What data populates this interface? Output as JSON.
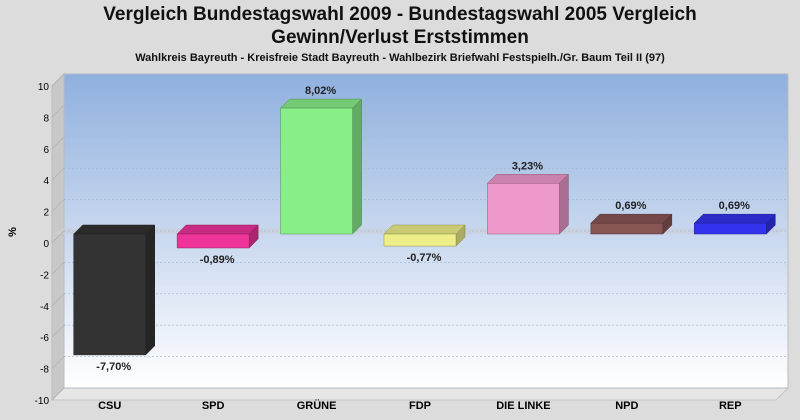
{
  "title_line1": "Vergleich Bundestagswahl 2009 - Bundestagswahl 2005 Vergleich",
  "title_line2": "Gewinn/Verlust Erststimmen",
  "subtitle": "Wahlkreis Bayreuth - Kreisfreie Stadt Bayreuth - Wahlbezirk Briefwahl Festspielh./Gr. Baum Teil II (97)",
  "chart_data": {
    "type": "bar",
    "ylabel": "%",
    "ylim": [
      -10,
      10
    ],
    "yticks": [
      "10",
      "8",
      "6",
      "4",
      "2",
      "0",
      "-2",
      "-4",
      "-6",
      "-8",
      "-10"
    ],
    "grid": true,
    "categories": [
      "CSU",
      "SPD",
      "GRÜNE",
      "FDP",
      "DIE LINKE",
      "NPD",
      "REP"
    ],
    "values": [
      -7.7,
      -0.89,
      8.02,
      -0.77,
      3.23,
      0.69,
      0.69
    ],
    "labels": [
      "-7,70%",
      "-0,89%",
      "8,02%",
      "-0,77%",
      "3,23%",
      "0,69%",
      "0,69%"
    ],
    "colors": [
      "#333333",
      "#ee3399",
      "#88ee88",
      "#eeee88",
      "#ee99cc",
      "#885555",
      "#3333ee"
    ]
  }
}
